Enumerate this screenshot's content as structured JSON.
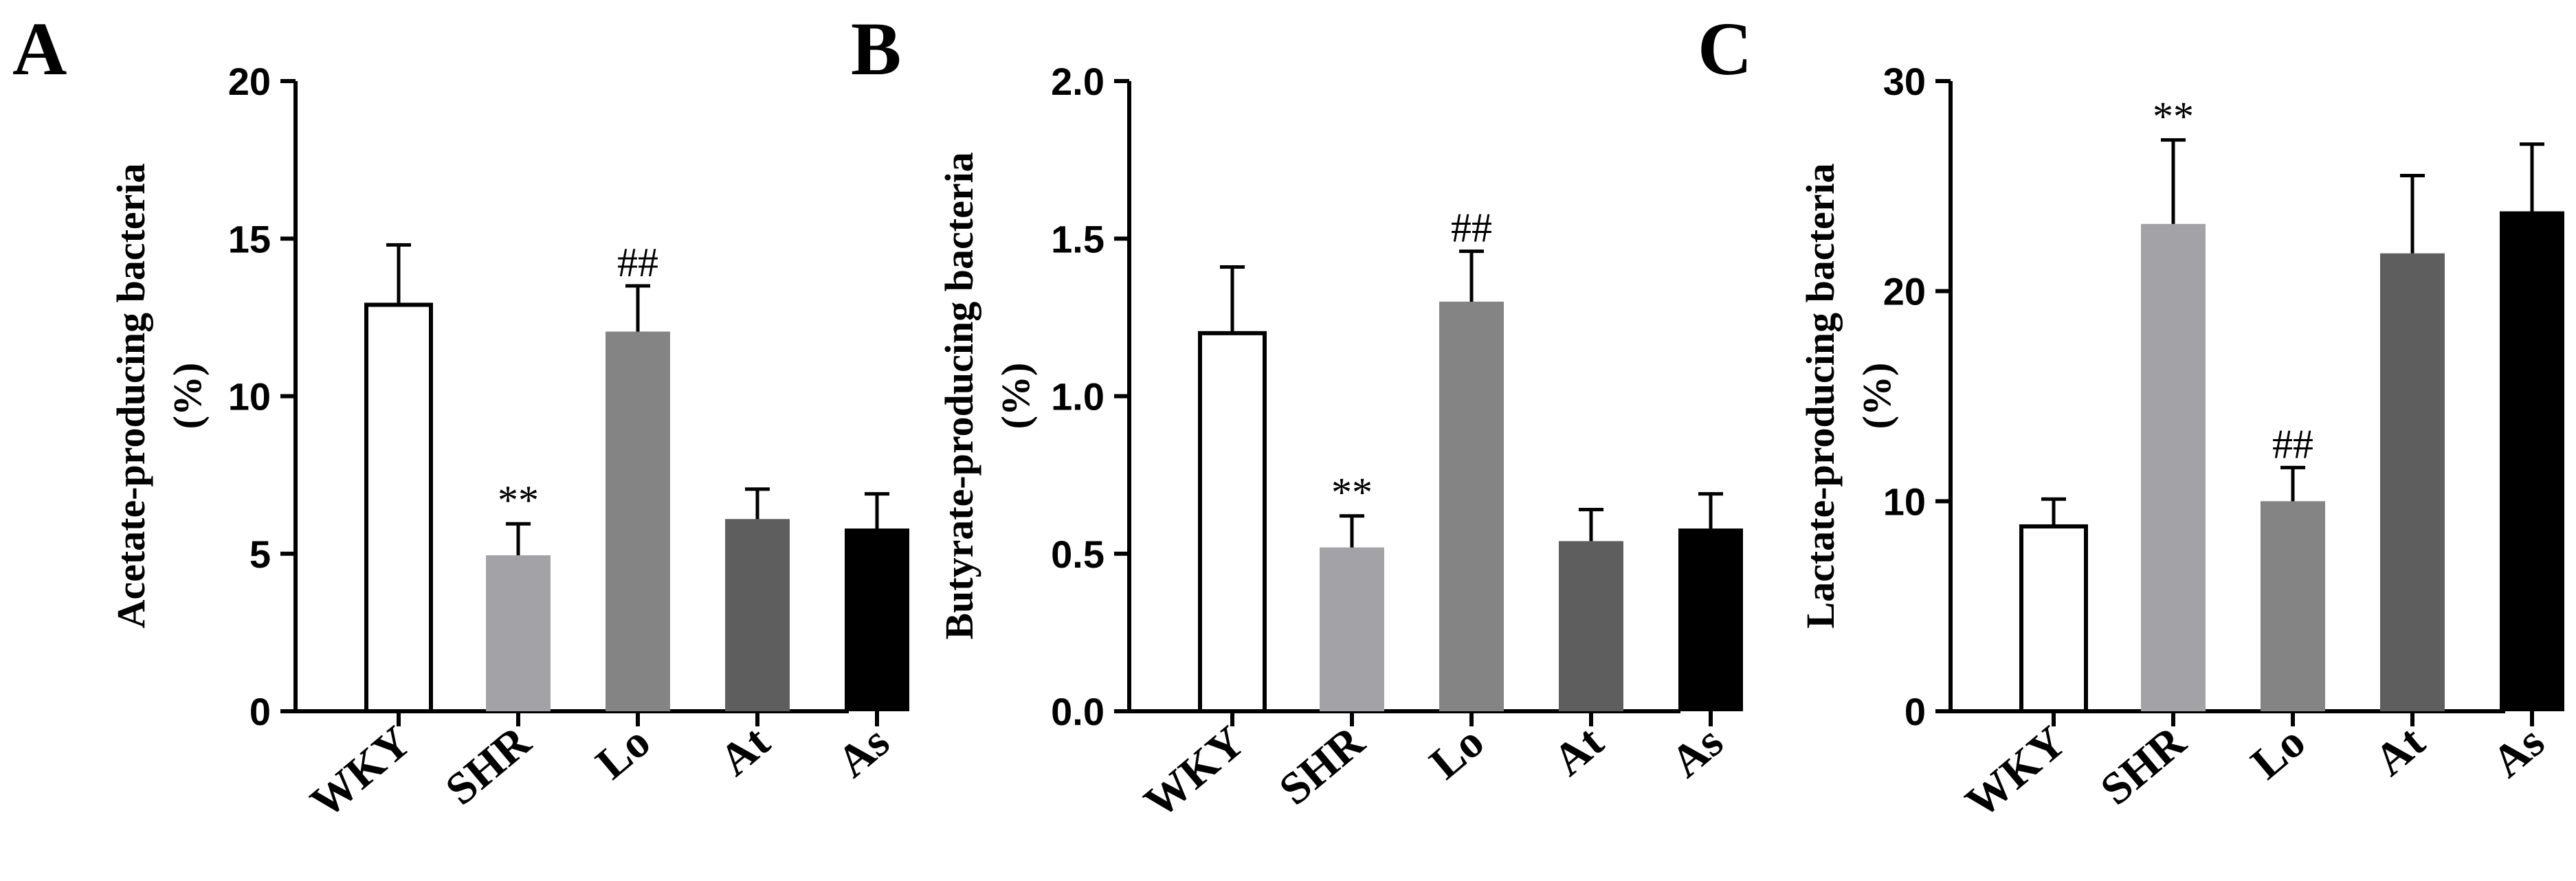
{
  "colors": {
    "WKY": "#ffffff",
    "SHR": "#a3a3a7",
    "Lo": "#848484",
    "At": "#5e5e5e",
    "As": "#000000"
  },
  "chart_data": [
    {
      "type": "bar",
      "panel": "A",
      "ylabel_line1": "Acetate-producing bacteria",
      "ylabel_line2": "(%)",
      "categories": [
        "WKY",
        "SHR",
        "Lo",
        "At",
        "As"
      ],
      "values": [
        12.9,
        4.95,
        12.05,
        6.1,
        5.8
      ],
      "errors": [
        1.9,
        1.0,
        1.45,
        0.95,
        1.1
      ],
      "annotations": [
        "",
        "**",
        "##",
        "",
        ""
      ],
      "ylim": [
        0,
        20
      ],
      "yticks": [
        0,
        5,
        10,
        15,
        20
      ],
      "ytick_labels": [
        "0",
        "5",
        "10",
        "15",
        "20"
      ]
    },
    {
      "type": "bar",
      "panel": "B",
      "ylabel_line1": "Butyrate-producing bacteria",
      "ylabel_line2": "(%)",
      "categories": [
        "WKY",
        "SHR",
        "Lo",
        "At",
        "As"
      ],
      "values": [
        1.2,
        0.52,
        1.3,
        0.54,
        0.58
      ],
      "errors": [
        0.21,
        0.1,
        0.16,
        0.1,
        0.11
      ],
      "annotations": [
        "",
        "**",
        "##",
        "",
        ""
      ],
      "ylim": [
        0,
        2.0
      ],
      "yticks": [
        0,
        0.5,
        1.0,
        1.5,
        2.0
      ],
      "ytick_labels": [
        "0.0",
        "0.5",
        "1.0",
        "1.5",
        "2.0"
      ]
    },
    {
      "type": "bar",
      "panel": "C",
      "ylabel_line1": "Lactate-producing bacteria",
      "ylabel_line2": "(%)",
      "categories": [
        "WKY",
        "SHR",
        "Lo",
        "At",
        "As"
      ],
      "values": [
        8.8,
        23.2,
        10.0,
        21.8,
        23.8
      ],
      "errors": [
        1.3,
        4.0,
        1.6,
        3.7,
        3.2
      ],
      "annotations": [
        "",
        "**",
        "##",
        "",
        ""
      ],
      "ylim": [
        0,
        30
      ],
      "yticks": [
        0,
        10,
        20,
        30
      ],
      "ytick_labels": [
        "0",
        "10",
        "20",
        "30"
      ]
    }
  ]
}
